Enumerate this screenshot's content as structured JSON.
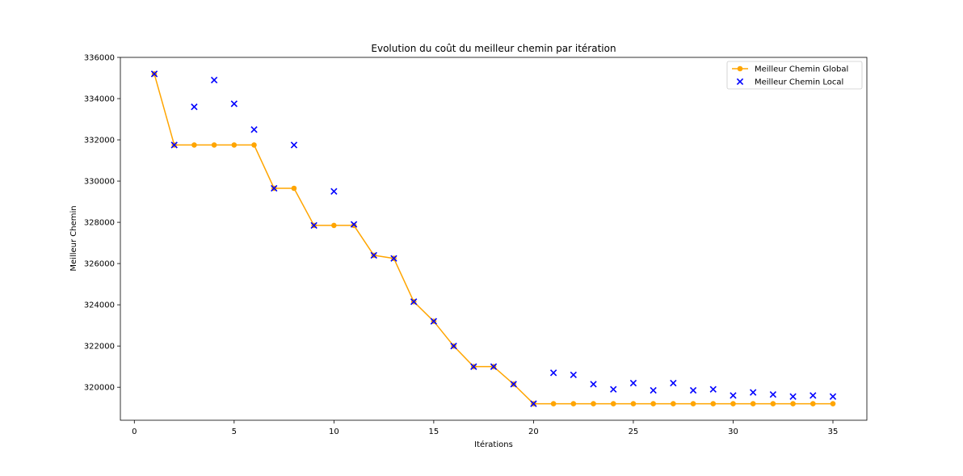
{
  "chart_data": {
    "type": "line",
    "title": "Evolution du coût du meilleur chemin par itération",
    "xlabel": "Itérations",
    "ylabel": "Meilleur Chemin",
    "xlim": [
      -0.7,
      36.7
    ],
    "ylim": [
      318400,
      336000
    ],
    "xticks": [
      0,
      5,
      10,
      15,
      20,
      25,
      30,
      35
    ],
    "yticks": [
      320000,
      322000,
      324000,
      326000,
      328000,
      330000,
      332000,
      334000,
      336000
    ],
    "grid": false,
    "legend_position": "top-right",
    "x": [
      1,
      2,
      3,
      4,
      5,
      6,
      7,
      8,
      9,
      10,
      11,
      12,
      13,
      14,
      15,
      16,
      17,
      18,
      19,
      20,
      21,
      22,
      23,
      24,
      25,
      26,
      27,
      28,
      29,
      30,
      31,
      32,
      33,
      34,
      35
    ],
    "series": [
      {
        "name": "Meilleur Chemin Global",
        "style": "line-circle",
        "color": "#FFA500",
        "values": [
          335200,
          331750,
          331750,
          331750,
          331750,
          331750,
          329650,
          329650,
          327850,
          327850,
          327850,
          326400,
          326250,
          324150,
          323200,
          322000,
          321000,
          321000,
          320150,
          319200,
          319200,
          319200,
          319200,
          319200,
          319200,
          319200,
          319200,
          319200,
          319200,
          319200,
          319200,
          319200,
          319200,
          319200,
          319200
        ]
      },
      {
        "name": "Meilleur Chemin Local",
        "style": "x-marker",
        "color": "#0000FF",
        "values": [
          335200,
          331750,
          333600,
          334900,
          333750,
          332500,
          329650,
          331750,
          327850,
          329500,
          327900,
          326400,
          326250,
          324150,
          323200,
          322000,
          321000,
          321000,
          320150,
          319200,
          320700,
          320600,
          320150,
          319900,
          320200,
          319850,
          320200,
          319850,
          319900,
          319600,
          319750,
          319650,
          319550,
          319600,
          319550
        ]
      }
    ]
  }
}
